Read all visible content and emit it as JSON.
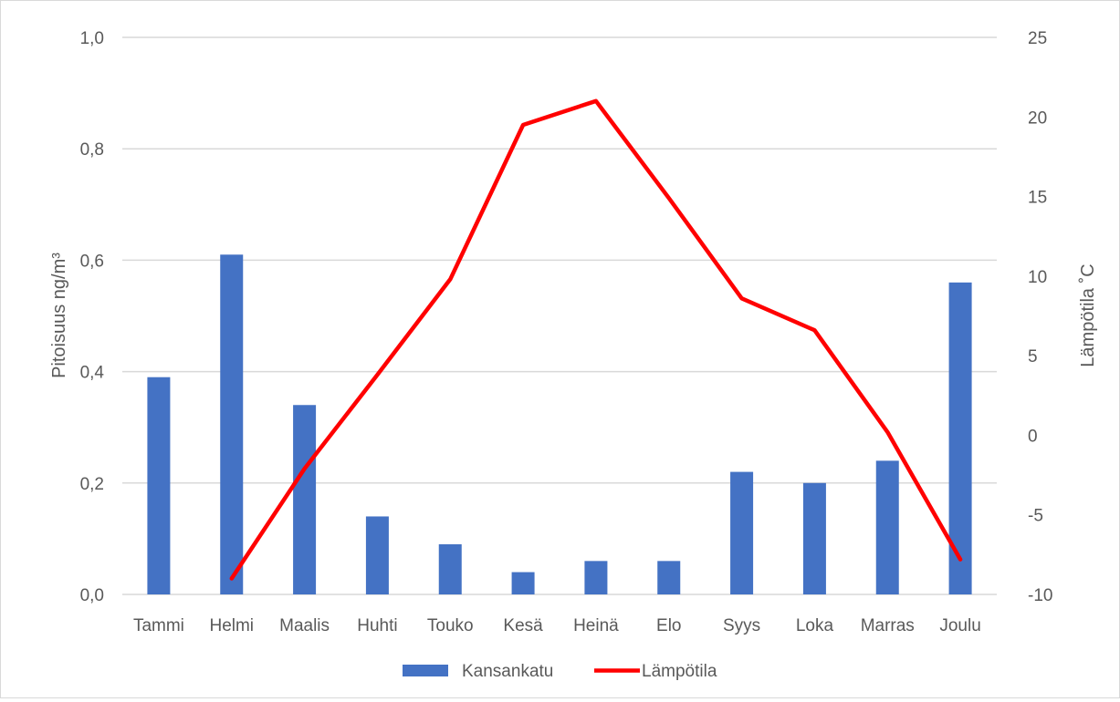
{
  "chart_data": {
    "type": "bar+line",
    "categories": [
      "Tammi",
      "Helmi",
      "Maalis",
      "Huhti",
      "Touko",
      "Kesä",
      "Heinä",
      "Elo",
      "Syys",
      "Loka",
      "Marras",
      "Joulu"
    ],
    "series": [
      {
        "name": "Kansankatu",
        "type": "bar",
        "axis": "left",
        "color": "#4472c4",
        "values": [
          0.39,
          0.61,
          0.34,
          0.14,
          0.09,
          0.04,
          0.06,
          0.06,
          0.22,
          0.2,
          0.24,
          0.56
        ]
      },
      {
        "name": "Lämpötila",
        "type": "line",
        "axis": "right",
        "color": "#ff0000",
        "values": [
          null,
          -9.0,
          -2.1,
          3.8,
          9.8,
          19.5,
          21.0,
          14.9,
          8.6,
          6.6,
          0.2,
          -7.8
        ]
      }
    ],
    "y_left": {
      "label": "Pitoisuus ng/m³",
      "ylim": [
        0,
        1.0
      ],
      "ticks": [
        "0,0",
        "0,2",
        "0,4",
        "0,6",
        "0,8",
        "1,0"
      ]
    },
    "y_right": {
      "label": "Lämpötila ˚C",
      "ylim": [
        -10,
        25
      ],
      "ticks": [
        "-10",
        "-5",
        "0",
        "5",
        "10",
        "15",
        "20",
        "25"
      ]
    },
    "grid": true,
    "legend_position": "bottom",
    "colors": {
      "grid": "#d9d9d9",
      "text": "#595959"
    }
  }
}
